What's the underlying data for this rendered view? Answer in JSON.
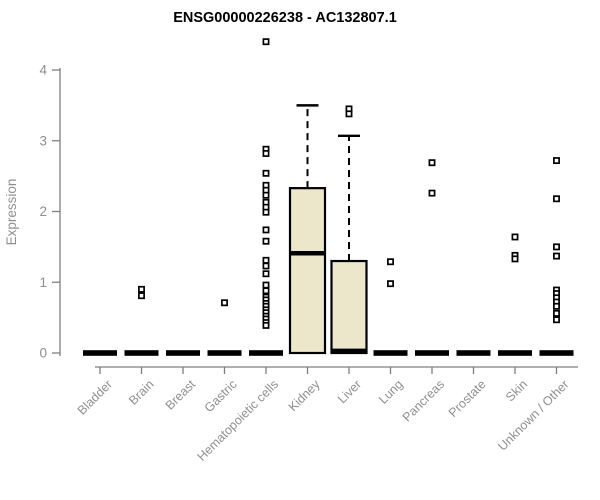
{
  "title": "ENSG00000226238 - AC132807.1",
  "chart_data": {
    "type": "boxplot",
    "title": "ENSG00000226238 - AC132807.1",
    "xlabel": "",
    "ylabel": "Expression",
    "ylim": [
      0,
      4.45
    ],
    "yticks": [
      0,
      1,
      2,
      3,
      4
    ],
    "grid": false,
    "legend": "none",
    "categories": [
      "Bladder",
      "Brain",
      "Breast",
      "Gastric",
      "Hematopoietic cells",
      "Kidney",
      "Liver",
      "Lung",
      "Pancreas",
      "Prostate",
      "Skin",
      "Unknown / Other"
    ],
    "boxes": [
      {
        "category": "Bladder",
        "q1": 0,
        "median": 0,
        "q3": 0,
        "whisker_low": 0,
        "whisker_high": 0,
        "outliers": []
      },
      {
        "category": "Brain",
        "q1": 0,
        "median": 0,
        "q3": 0,
        "whisker_low": 0,
        "whisker_high": 0,
        "outliers": [
          0.9,
          0.81
        ]
      },
      {
        "category": "Breast",
        "q1": 0,
        "median": 0,
        "q3": 0,
        "whisker_low": 0,
        "whisker_high": 0,
        "outliers": []
      },
      {
        "category": "Gastric",
        "q1": 0,
        "median": 0,
        "q3": 0,
        "whisker_low": 0,
        "whisker_high": 0,
        "outliers": [
          0.71
        ]
      },
      {
        "category": "Hematopoietic cells",
        "q1": 0,
        "median": 0,
        "q3": 0,
        "whisker_low": 0,
        "whisker_high": 0,
        "outliers": [
          4.4,
          2.88,
          2.82,
          2.54,
          2.37,
          2.3,
          2.23,
          2.13,
          2.06,
          1.99,
          1.74,
          1.58,
          1.31,
          1.23,
          1.12,
          0.96,
          0.88,
          0.79,
          0.75,
          0.7,
          0.66,
          0.61,
          0.57,
          0.52,
          0.48,
          0.43,
          0.39
        ]
      },
      {
        "category": "Kidney",
        "q1": 0,
        "median": 1.41,
        "q3": 2.33,
        "whisker_low": 0,
        "whisker_high": 3.5,
        "outliers": []
      },
      {
        "category": "Liver",
        "q1": 0,
        "median": 0.03,
        "q3": 1.3,
        "whisker_low": 0,
        "whisker_high": 3.07,
        "outliers": [
          3.45,
          3.38
        ]
      },
      {
        "category": "Lung",
        "q1": 0,
        "median": 0,
        "q3": 0,
        "whisker_low": 0,
        "whisker_high": 0,
        "outliers": [
          1.29,
          0.98
        ]
      },
      {
        "category": "Pancreas",
        "q1": 0,
        "median": 0,
        "q3": 0,
        "whisker_low": 0,
        "whisker_high": 0,
        "outliers": [
          2.69,
          2.26
        ]
      },
      {
        "category": "Prostate",
        "q1": 0,
        "median": 0,
        "q3": 0,
        "whisker_low": 0,
        "whisker_high": 0,
        "outliers": []
      },
      {
        "category": "Skin",
        "q1": 0,
        "median": 0,
        "q3": 0,
        "whisker_low": 0,
        "whisker_high": 0,
        "outliers": [
          1.64,
          1.38,
          1.33
        ]
      },
      {
        "category": "Unknown / Other",
        "q1": 0,
        "median": 0,
        "q3": 0,
        "whisker_low": 0,
        "whisker_high": 0,
        "outliers": [
          2.72,
          2.18,
          1.5,
          1.37,
          0.89,
          0.84,
          0.78,
          0.72,
          0.66,
          0.56,
          0.47
        ]
      }
    ],
    "colors": {
      "box_fill": "#ece7cb",
      "box_stroke": "#000000",
      "median": "#000000",
      "whisker": "#000000",
      "outlier_stroke": "#000000",
      "axis_line": "#7f7f7f",
      "axis_text": "#8f8f8f",
      "title_text": "#000000",
      "background": "#ffffff"
    }
  }
}
